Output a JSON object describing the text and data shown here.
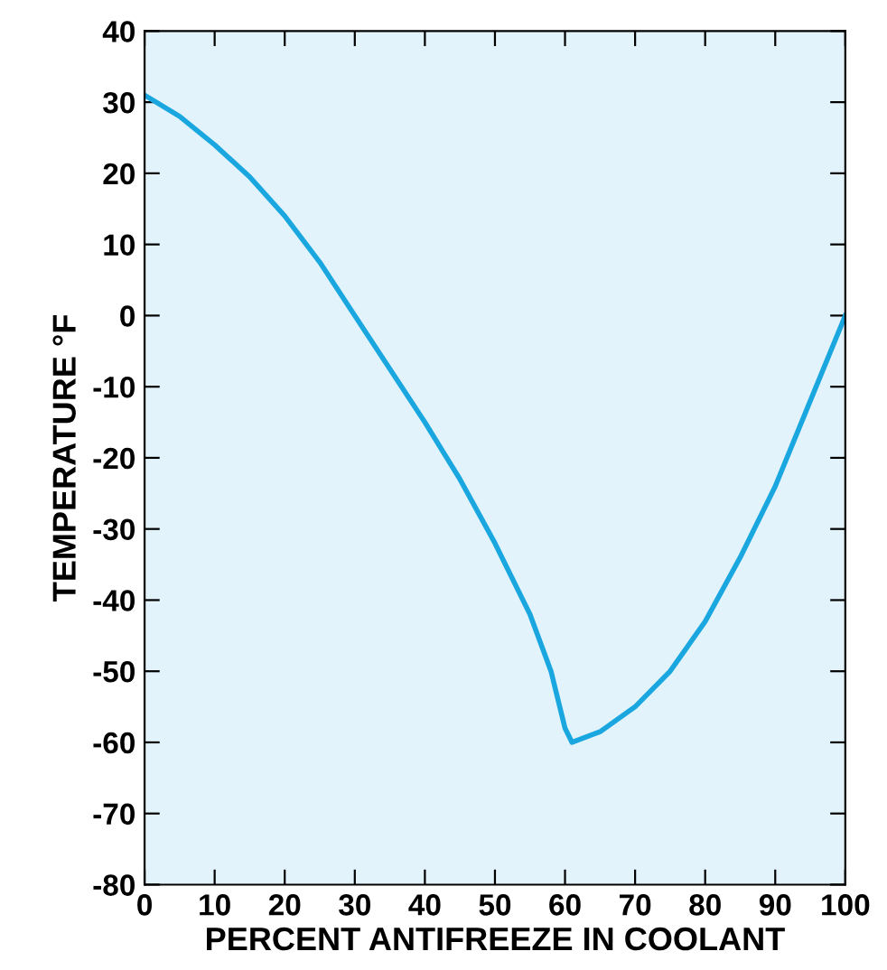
{
  "chart_data": {
    "type": "line",
    "xlabel": "PERCENT ANTIFREEZE IN COOLANT",
    "ylabel": "TEMPERATURE °F",
    "x": [
      0,
      5,
      10,
      15,
      20,
      25,
      30,
      35,
      40,
      45,
      50,
      55,
      58,
      60,
      61,
      65,
      70,
      75,
      80,
      85,
      90,
      95,
      100
    ],
    "series": [
      {
        "color": "#1aa7e0",
        "values": [
          31,
          28,
          24,
          19.5,
          14,
          7.5,
          0,
          -7.5,
          -15,
          -23,
          -32,
          -42,
          -50,
          -58,
          -60,
          -58.5,
          -55,
          -50,
          -43,
          -34,
          -24,
          -12,
          0
        ]
      }
    ],
    "xlim": [
      0,
      100
    ],
    "ylim": [
      -80,
      40
    ],
    "xticks": [
      0,
      10,
      20,
      30,
      40,
      50,
      60,
      70,
      80,
      90,
      100
    ],
    "yticks": [
      -80,
      -70,
      -60,
      -50,
      -40,
      -30,
      -20,
      -10,
      0,
      10,
      20,
      30,
      40
    ],
    "grid": false,
    "legend": false,
    "marker": "none",
    "line_style": "solid"
  }
}
